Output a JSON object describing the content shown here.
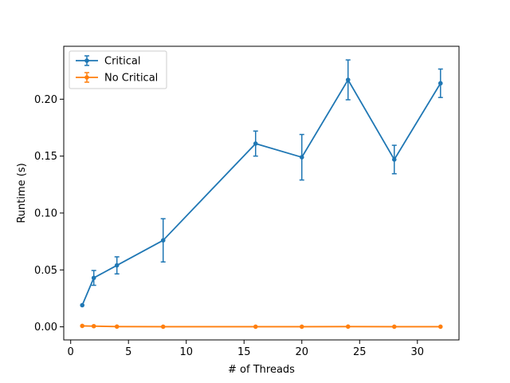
{
  "chart_data": {
    "type": "line",
    "title": "",
    "xlabel": "# of Threads",
    "ylabel": "Runtime (s)",
    "xlim": [
      -0.6,
      33.6
    ],
    "ylim": [
      -0.0115,
      0.2465
    ],
    "xticks": [
      0,
      5,
      10,
      15,
      20,
      25,
      30
    ],
    "xtick_labels": [
      "0",
      "5",
      "10",
      "15",
      "20",
      "25",
      "30"
    ],
    "yticks": [
      0.0,
      0.05,
      0.1,
      0.15,
      0.2
    ],
    "ytick_labels": [
      "0.00",
      "0.05",
      "0.10",
      "0.15",
      "0.20"
    ],
    "grid": false,
    "legend_position": "top-left",
    "series": [
      {
        "name": "Critical",
        "color": "#1f77b4",
        "x": [
          1,
          2,
          4,
          8,
          16,
          20,
          24,
          28,
          32
        ],
        "y": [
          0.019,
          0.043,
          0.054,
          0.076,
          0.161,
          0.149,
          0.217,
          0.147,
          0.214
        ],
        "err": [
          0.0,
          0.0065,
          0.0075,
          0.019,
          0.011,
          0.02,
          0.0175,
          0.0125,
          0.0125
        ]
      },
      {
        "name": "No Critical",
        "color": "#ff7f0e",
        "x": [
          1,
          2,
          4,
          8,
          16,
          20,
          24,
          28,
          32
        ],
        "y": [
          0.0008,
          0.0006,
          0.0002,
          0.0001,
          0.0001,
          0.0001,
          0.0002,
          0.0001,
          0.0001
        ],
        "err": [
          0,
          0,
          0,
          0,
          0,
          0,
          0,
          0,
          0
        ]
      }
    ]
  }
}
